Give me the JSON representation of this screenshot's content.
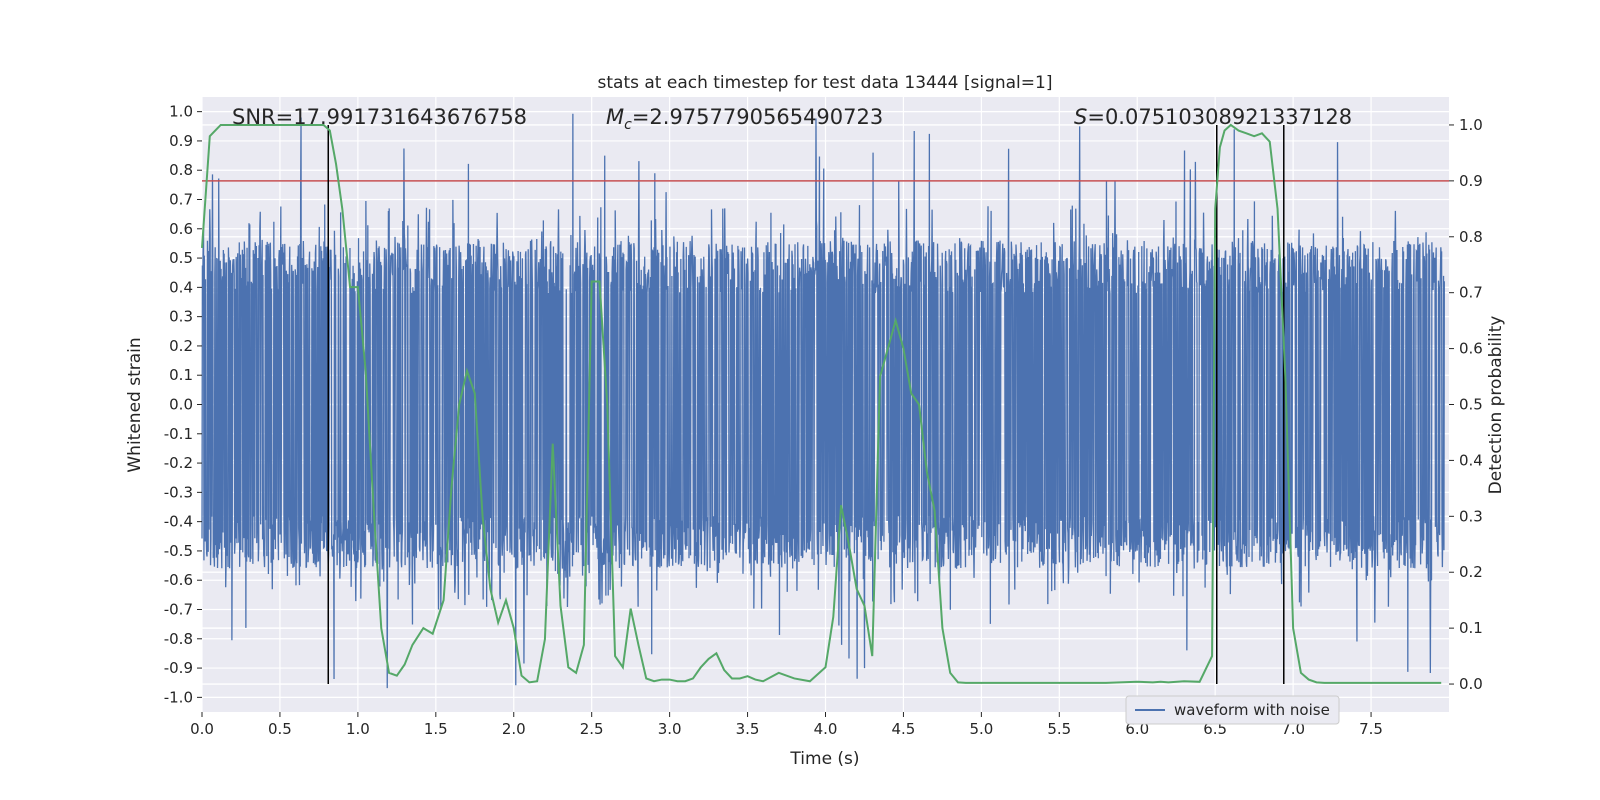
{
  "chart_data": {
    "type": "line",
    "title": "stats at each timestep for test data 13444 [signal=1]",
    "xlabel": "Time (s)",
    "ylabel_left": "Whitened strain",
    "ylabel_right": "Detection probability",
    "xlim": [
      0,
      8
    ],
    "ylim_left": [
      -1.05,
      1.05
    ],
    "ylim_right": [
      -0.05,
      1.05
    ],
    "x_ticks": [
      "0.0",
      "0.5",
      "1.0",
      "1.5",
      "2.0",
      "2.5",
      "3.0",
      "3.5",
      "4.0",
      "4.5",
      "5.0",
      "5.5",
      "6.0",
      "6.5",
      "7.0",
      "7.5"
    ],
    "y_ticks_left": [
      "-1.0",
      "-0.9",
      "-0.8",
      "-0.7",
      "-0.6",
      "-0.5",
      "-0.4",
      "-0.3",
      "-0.2",
      "-0.1",
      "0.0",
      "0.1",
      "0.2",
      "0.3",
      "0.4",
      "0.5",
      "0.6",
      "0.7",
      "0.8",
      "0.9",
      "1.0"
    ],
    "y_ticks_right": [
      "0.0",
      "0.1",
      "0.2",
      "0.3",
      "0.4",
      "0.5",
      "0.6",
      "0.7",
      "0.8",
      "0.9",
      "1.0"
    ],
    "grid": true,
    "legend": {
      "placement": "lower-right",
      "entries": [
        "waveform with noise"
      ]
    },
    "annotations": {
      "snr": "SNR=17.991731643676758",
      "mc_symbol": "M",
      "mc_sub": "c",
      "mc_value": "=2.9757790565490723",
      "s_symbol": "S",
      "s_value": "=0.07510308921337128"
    },
    "threshold": {
      "value": 0.9,
      "axis": "right",
      "color": "#c44e52"
    },
    "vlines": [
      {
        "x": 0.81,
        "ymin": 0.0,
        "ymax": 1.0
      },
      {
        "x": 6.51,
        "ymin": 0.0,
        "ymax": 1.0
      },
      {
        "x": 6.94,
        "ymin": 0.0,
        "ymax": 1.0
      }
    ],
    "series": [
      {
        "name": "waveform with noise",
        "axis": "left",
        "color": "#4c72b0",
        "dense_noise": {
          "n_samples": 3200,
          "core_amplitude": 0.38,
          "peak_amplitude": 1.0
        }
      },
      {
        "axis": "right",
        "color": "#55a868",
        "x": [
          0.0,
          0.05,
          0.12,
          0.2,
          0.3,
          0.4,
          0.5,
          0.6,
          0.7,
          0.78,
          0.82,
          0.86,
          0.9,
          0.95,
          1.0,
          1.05,
          1.1,
          1.15,
          1.2,
          1.25,
          1.3,
          1.35,
          1.42,
          1.48,
          1.55,
          1.6,
          1.65,
          1.7,
          1.75,
          1.8,
          1.85,
          1.9,
          1.95,
          2.0,
          2.05,
          2.1,
          2.15,
          2.2,
          2.25,
          2.3,
          2.35,
          2.4,
          2.45,
          2.5,
          2.55,
          2.6,
          2.65,
          2.7,
          2.75,
          2.8,
          2.85,
          2.9,
          2.95,
          3.0,
          3.05,
          3.1,
          3.15,
          3.2,
          3.25,
          3.3,
          3.35,
          3.4,
          3.45,
          3.5,
          3.55,
          3.6,
          3.7,
          3.8,
          3.9,
          4.0,
          4.05,
          4.1,
          4.15,
          4.2,
          4.25,
          4.3,
          4.35,
          4.4,
          4.45,
          4.5,
          4.55,
          4.6,
          4.65,
          4.7,
          4.75,
          4.8,
          4.85,
          4.9,
          5.0,
          5.2,
          5.4,
          5.6,
          5.8,
          6.0,
          6.1,
          6.15,
          6.2,
          6.3,
          6.4,
          6.48,
          6.5,
          6.53,
          6.56,
          6.6,
          6.65,
          6.7,
          6.75,
          6.8,
          6.85,
          6.9,
          6.95,
          7.0,
          7.05,
          7.1,
          7.15,
          7.2,
          7.3,
          7.5,
          7.7,
          7.95
        ],
        "values": [
          0.78,
          0.98,
          1.0,
          1.0,
          1.0,
          1.0,
          1.0,
          1.0,
          1.0,
          1.0,
          0.99,
          0.93,
          0.85,
          0.71,
          0.71,
          0.56,
          0.32,
          0.1,
          0.02,
          0.015,
          0.035,
          0.07,
          0.1,
          0.09,
          0.15,
          0.35,
          0.5,
          0.56,
          0.52,
          0.3,
          0.17,
          0.11,
          0.15,
          0.1,
          0.015,
          0.003,
          0.005,
          0.08,
          0.43,
          0.14,
          0.03,
          0.02,
          0.07,
          0.72,
          0.72,
          0.5,
          0.05,
          0.03,
          0.135,
          0.07,
          0.01,
          0.005,
          0.008,
          0.008,
          0.005,
          0.005,
          0.01,
          0.03,
          0.045,
          0.055,
          0.025,
          0.01,
          0.01,
          0.014,
          0.008,
          0.005,
          0.02,
          0.01,
          0.005,
          0.03,
          0.12,
          0.32,
          0.25,
          0.17,
          0.14,
          0.05,
          0.55,
          0.6,
          0.65,
          0.6,
          0.52,
          0.5,
          0.38,
          0.31,
          0.1,
          0.02,
          0.003,
          0.002,
          0.002,
          0.002,
          0.002,
          0.002,
          0.002,
          0.004,
          0.003,
          0.004,
          0.003,
          0.005,
          0.004,
          0.05,
          0.85,
          0.96,
          0.99,
          1.0,
          0.99,
          0.985,
          0.98,
          0.985,
          0.97,
          0.85,
          0.55,
          0.1,
          0.02,
          0.008,
          0.003,
          0.002,
          0.002,
          0.002,
          0.002,
          0.002
        ]
      }
    ]
  }
}
